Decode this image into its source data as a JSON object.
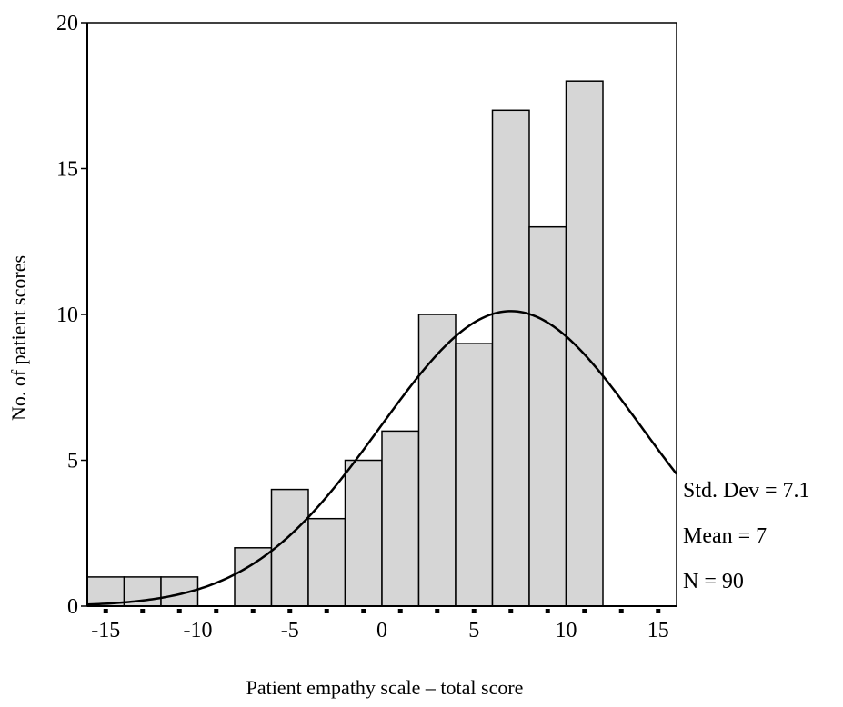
{
  "chart_data": {
    "type": "bar",
    "xlabel": "Patient empathy scale – total score",
    "ylabel": "No. of patient scores",
    "xlim": [
      -16,
      16
    ],
    "ylim": [
      0,
      20
    ],
    "xticks": [
      -15,
      -10,
      -5,
      0,
      5,
      10,
      15
    ],
    "xtick_labels": [
      "-15",
      "-10",
      "-5",
      "0",
      "5",
      "10",
      "15"
    ],
    "yticks": [
      0,
      5,
      10,
      15,
      20
    ],
    "ytick_labels": [
      "0",
      "5",
      "10",
      "15",
      "20"
    ],
    "bin_edges": [
      -16,
      -14,
      -12,
      -10,
      -8,
      -6,
      -4,
      -2,
      0,
      2,
      4,
      6,
      8,
      10,
      12,
      14,
      16
    ],
    "bins": [
      {
        "x0": -16,
        "x1": -14,
        "count": 1
      },
      {
        "x0": -14,
        "x1": -12,
        "count": 1
      },
      {
        "x0": -12,
        "x1": -10,
        "count": 1
      },
      {
        "x0": -10,
        "x1": -8,
        "count": 0
      },
      {
        "x0": -8,
        "x1": -6,
        "count": 2
      },
      {
        "x0": -6,
        "x1": -4,
        "count": 4
      },
      {
        "x0": -4,
        "x1": -2,
        "count": 3
      },
      {
        "x0": -2,
        "x1": 0,
        "count": 5
      },
      {
        "x0": 0,
        "x1": 2,
        "count": 6
      },
      {
        "x0": 2,
        "x1": 4,
        "count": 10
      },
      {
        "x0": 4,
        "x1": 6,
        "count": 9
      },
      {
        "x0": 6,
        "x1": 8,
        "count": 17
      },
      {
        "x0": 8,
        "x1": 10,
        "count": 13
      },
      {
        "x0": 10,
        "x1": 12,
        "count": 18
      }
    ],
    "normal_curve": {
      "mean": 7,
      "std_dev": 7.1,
      "n": 90
    },
    "bar_fill": "#d6d6d6",
    "grid": false,
    "legend": "none"
  },
  "stats": {
    "std_dev": "Std. Dev = 7.1",
    "mean": "Mean = 7",
    "n": "N = 90"
  }
}
